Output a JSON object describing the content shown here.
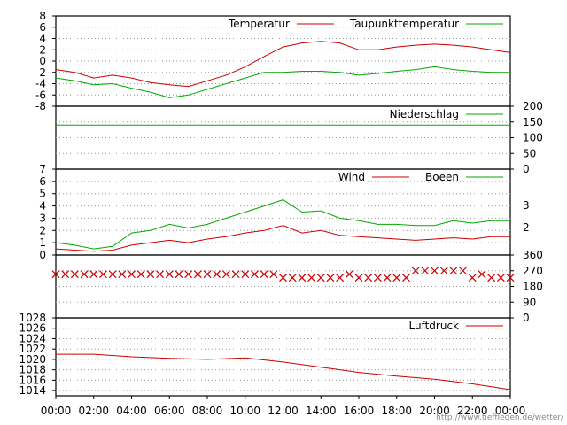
{
  "chart_data": [
    {
      "type": "line",
      "ylim": [
        -8,
        8
      ],
      "yticks": [
        "8",
        "6",
        "4",
        "2",
        "0",
        "-2",
        "-4",
        "-6",
        "-8"
      ],
      "grid": true,
      "legend_placement": "top-right",
      "series": [
        {
          "name": "Temperatur",
          "color": "#cc0000",
          "x": [
            0,
            1,
            2,
            3,
            4,
            5,
            6,
            7,
            8,
            9,
            10,
            11,
            12,
            13,
            14,
            15,
            16,
            17,
            18,
            19,
            20,
            21,
            22,
            23,
            24
          ],
          "values": [
            -1.5,
            -2.0,
            -3.0,
            -2.5,
            -3.0,
            -3.8,
            -4.2,
            -4.5,
            -3.5,
            -2.5,
            -1.0,
            0.8,
            2.5,
            3.2,
            3.5,
            3.2,
            2.0,
            2.0,
            2.5,
            2.8,
            3.0,
            2.8,
            2.5,
            2.0,
            1.5
          ]
        },
        {
          "name": "Taupunkttemperatur",
          "color": "#00aa00",
          "x": [
            0,
            1,
            2,
            3,
            4,
            5,
            6,
            7,
            8,
            9,
            10,
            11,
            12,
            13,
            14,
            15,
            16,
            17,
            18,
            19,
            20,
            21,
            22,
            23,
            24
          ],
          "values": [
            -3.0,
            -3.5,
            -4.2,
            -4.0,
            -4.8,
            -5.5,
            -6.5,
            -6.0,
            -5.0,
            -4.0,
            -3.0,
            -2.0,
            -2.0,
            -1.8,
            -1.8,
            -2.0,
            -2.5,
            -2.2,
            -1.8,
            -1.5,
            -1.0,
            -1.5,
            -1.8,
            -2.0,
            -2.0
          ]
        }
      ]
    },
    {
      "type": "line",
      "ylim": [
        0,
        200
      ],
      "yticks": [
        "200",
        "150",
        "100",
        "50",
        "0"
      ],
      "axis_side": "right",
      "grid": true,
      "legend_placement": "top-right",
      "series": [
        {
          "name": "Niederschlag",
          "color": "#00aa00",
          "x": [
            0,
            24
          ],
          "values": [
            140,
            140
          ]
        }
      ]
    },
    {
      "type": "line",
      "ylim": [
        0,
        7
      ],
      "yticks": [
        "7",
        "6",
        "5",
        "4",
        "3",
        "2",
        "1",
        "0"
      ],
      "right_labels": [
        "3",
        "2"
      ],
      "grid": true,
      "legend_placement": "top-right",
      "series": [
        {
          "name": "Wind",
          "color": "#cc0000",
          "x": [
            0,
            1,
            2,
            3,
            4,
            5,
            6,
            7,
            8,
            9,
            10,
            11,
            12,
            13,
            14,
            15,
            16,
            17,
            18,
            19,
            20,
            21,
            22,
            23,
            24
          ],
          "values": [
            0.5,
            0.4,
            0.3,
            0.4,
            0.8,
            1.0,
            1.2,
            1.0,
            1.3,
            1.5,
            1.8,
            2.0,
            2.4,
            1.8,
            2.0,
            1.6,
            1.5,
            1.4,
            1.3,
            1.2,
            1.3,
            1.4,
            1.3,
            1.5,
            1.5
          ]
        },
        {
          "name": "Boeen",
          "color": "#00aa00",
          "x": [
            0,
            1,
            2,
            3,
            4,
            5,
            6,
            7,
            8,
            9,
            10,
            11,
            12,
            13,
            14,
            15,
            16,
            17,
            18,
            19,
            20,
            21,
            22,
            23,
            24
          ],
          "values": [
            1.0,
            0.8,
            0.5,
            0.7,
            1.8,
            2.0,
            2.5,
            2.2,
            2.5,
            3.0,
            3.5,
            4.0,
            4.5,
            3.5,
            3.6,
            3.0,
            2.8,
            2.5,
            2.5,
            2.4,
            2.4,
            2.8,
            2.6,
            2.8,
            2.8
          ]
        }
      ]
    },
    {
      "type": "scatter",
      "ylim": [
        0,
        360
      ],
      "yticks": [
        "360",
        "270",
        "180",
        "90",
        "0"
      ],
      "axis_side": "right",
      "grid": true,
      "series": [
        {
          "name": "",
          "color": "#cc0000",
          "marker": "x",
          "x": [
            0,
            0.5,
            1,
            1.5,
            2,
            2.5,
            3,
            3.5,
            4,
            4.5,
            5,
            5.5,
            6,
            6.5,
            7,
            7.5,
            8,
            8.5,
            9,
            9.5,
            10,
            10.5,
            11,
            11.5,
            12,
            12.5,
            13,
            13.5,
            14,
            14.5,
            15,
            15.5,
            16,
            16.5,
            17,
            17.5,
            18,
            18.5,
            19,
            19.5,
            20,
            20.5,
            21,
            21.5,
            22,
            22.5,
            23,
            23.5,
            24
          ],
          "values": [
            250,
            250,
            250,
            250,
            250,
            250,
            250,
            250,
            250,
            250,
            250,
            250,
            250,
            250,
            250,
            250,
            250,
            250,
            250,
            250,
            250,
            250,
            250,
            250,
            230,
            230,
            230,
            230,
            230,
            230,
            230,
            250,
            230,
            230,
            230,
            230,
            230,
            230,
            270,
            270,
            270,
            270,
            270,
            270,
            230,
            250,
            230,
            230,
            230
          ]
        }
      ]
    },
    {
      "type": "line",
      "ylim": [
        1013,
        1028
      ],
      "yticks": [
        "1028",
        "1026",
        "1024",
        "1022",
        "1020",
        "1018",
        "1016",
        "1014"
      ],
      "grid": true,
      "legend_placement": "top-right",
      "series": [
        {
          "name": "Luftdruck",
          "color": "#cc0000",
          "x": [
            0,
            2,
            4,
            6,
            8,
            10,
            12,
            14,
            16,
            18,
            20,
            22,
            24
          ],
          "values": [
            1021,
            1021,
            1020.5,
            1020.2,
            1020,
            1020.3,
            1019.5,
            1018.5,
            1017.5,
            1016.8,
            1016.2,
            1015.3,
            1014.2
          ]
        }
      ]
    }
  ],
  "xticks": [
    "00:00",
    "02:00",
    "04:00",
    "06:00",
    "08:00",
    "10:00",
    "12:00",
    "14:00",
    "16:00",
    "18:00",
    "20:00",
    "22:00",
    "00:00"
  ],
  "source_url": "http://www.tiefflegen.de/wetter/"
}
